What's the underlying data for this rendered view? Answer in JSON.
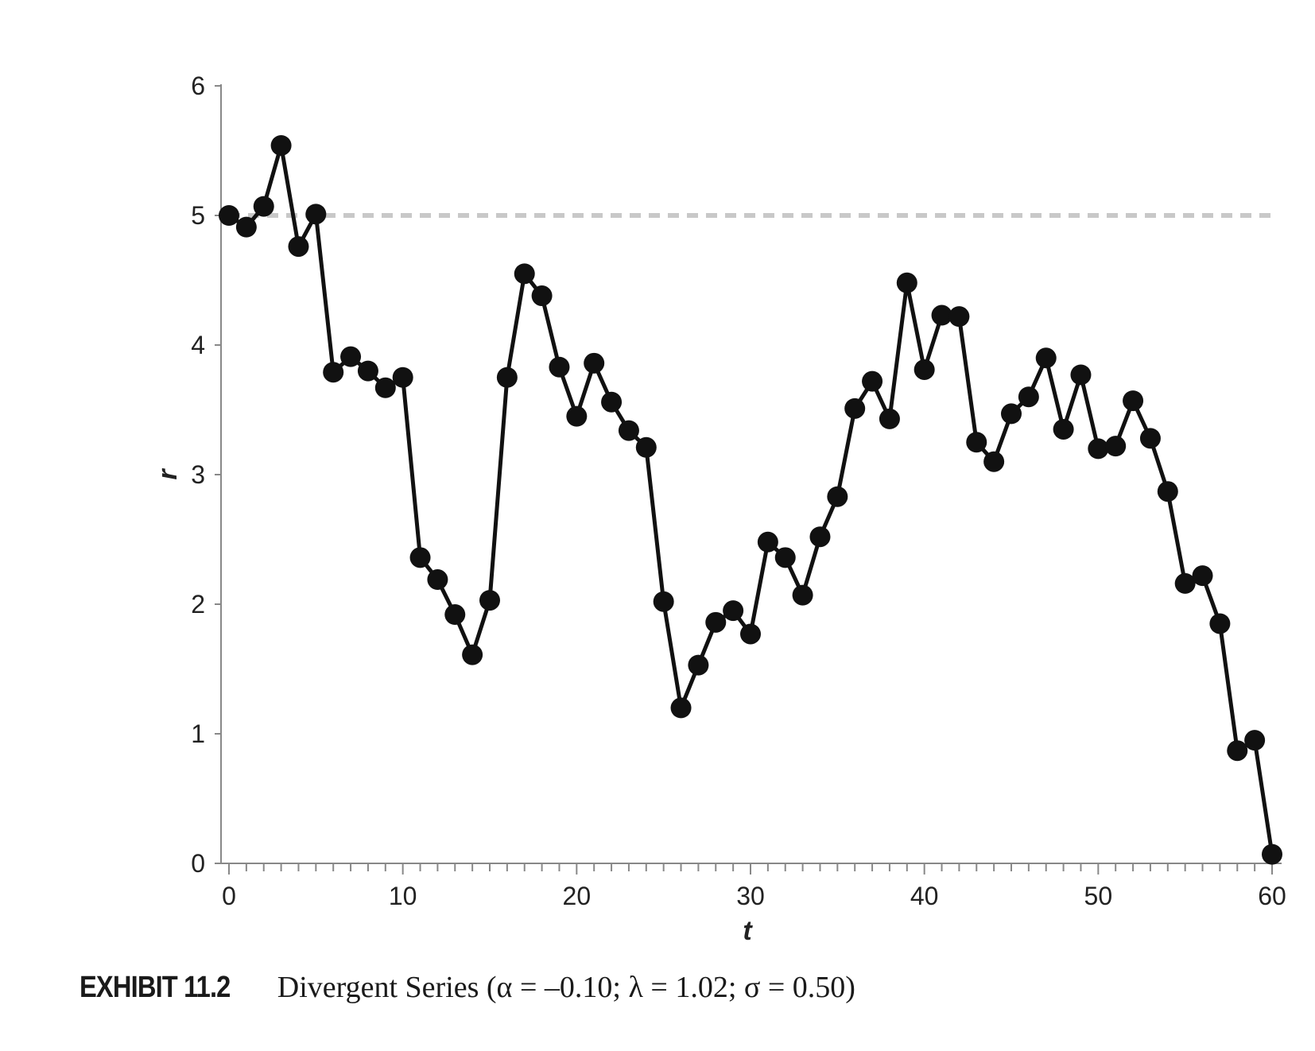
{
  "chart_data": {
    "type": "line",
    "xlabel": "t",
    "ylabel": "r",
    "xlim": [
      0,
      60
    ],
    "ylim": [
      0,
      6
    ],
    "xticks": [
      "0",
      "10",
      "20",
      "30",
      "40",
      "50",
      "60"
    ],
    "yticks": [
      "0",
      "1",
      "2",
      "3",
      "4",
      "5",
      "6"
    ],
    "x_minor_tick_step": 1,
    "reference_line": {
      "y": 5,
      "style": "dashed",
      "color": "#c8c8c8"
    },
    "series": [
      {
        "color": "#111111",
        "marker": "filled-circle",
        "x": [
          0,
          1,
          2,
          3,
          4,
          5,
          6,
          7,
          8,
          9,
          10,
          11,
          12,
          13,
          14,
          15,
          16,
          17,
          18,
          19,
          20,
          21,
          22,
          23,
          24,
          25,
          26,
          27,
          28,
          29,
          30,
          31,
          32,
          33,
          34,
          35,
          36,
          37,
          38,
          39,
          40,
          41,
          42,
          43,
          44,
          45,
          46,
          47,
          48,
          49,
          50,
          51,
          52,
          53,
          54,
          55,
          56,
          57,
          58,
          59,
          60
        ],
        "values": [
          5.0,
          4.91,
          5.07,
          5.54,
          4.76,
          5.01,
          3.79,
          3.91,
          3.8,
          3.67,
          3.75,
          2.36,
          2.19,
          1.92,
          1.61,
          2.03,
          3.75,
          4.55,
          4.38,
          3.83,
          3.45,
          3.86,
          3.56,
          3.34,
          3.21,
          2.02,
          1.2,
          1.53,
          1.86,
          1.95,
          1.77,
          2.48,
          2.36,
          2.07,
          2.52,
          2.83,
          3.51,
          3.72,
          3.43,
          4.48,
          3.81,
          4.23,
          4.22,
          3.25,
          3.1,
          3.47,
          3.6,
          3.9,
          3.35,
          3.77,
          3.2,
          3.22,
          3.57,
          3.28,
          2.87,
          2.16,
          2.22,
          1.85,
          0.87,
          0.95,
          0.07
        ]
      }
    ]
  },
  "caption": {
    "label": "EXHIBIT 11.2",
    "text": "Divergent Series (α = –0.10; λ = 1.02; σ = 0.50)"
  }
}
